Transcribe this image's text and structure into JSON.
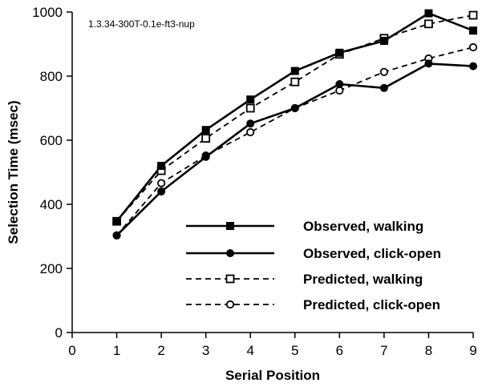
{
  "chart_data": {
    "type": "line",
    "annotation": "1.3.34-300T-0.1e-ft3-nup",
    "xlabel": "Serial Position",
    "ylabel": "Selection Time (msec)",
    "xlim": [
      0,
      9
    ],
    "ylim": [
      0,
      1000
    ],
    "xticks": [
      0,
      1,
      2,
      3,
      4,
      5,
      6,
      7,
      8,
      9
    ],
    "yticks": [
      0,
      200,
      400,
      600,
      800,
      1000
    ],
    "x": [
      1,
      2,
      3,
      4,
      5,
      6,
      7,
      8,
      9
    ],
    "grid": false,
    "legend_position": "bottom-right",
    "series": [
      {
        "name": "Observed, walking",
        "line": "solid",
        "marker": "filled-square",
        "values": [
          347,
          520,
          632,
          727,
          816,
          873,
          910,
          996,
          942
        ]
      },
      {
        "name": "Observed, click-open",
        "line": "solid",
        "marker": "filled-circle",
        "values": [
          303,
          440,
          548,
          652,
          700,
          775,
          763,
          839,
          831
        ]
      },
      {
        "name": "Predicted, walking",
        "line": "dashed",
        "marker": "open-square",
        "values": [
          347,
          505,
          606,
          700,
          782,
          868,
          918,
          963,
          990
        ]
      },
      {
        "name": "Predicted, click-open",
        "line": "dashed",
        "marker": "open-circle",
        "values": [
          303,
          466,
          552,
          625,
          700,
          755,
          813,
          855,
          890
        ]
      }
    ]
  }
}
